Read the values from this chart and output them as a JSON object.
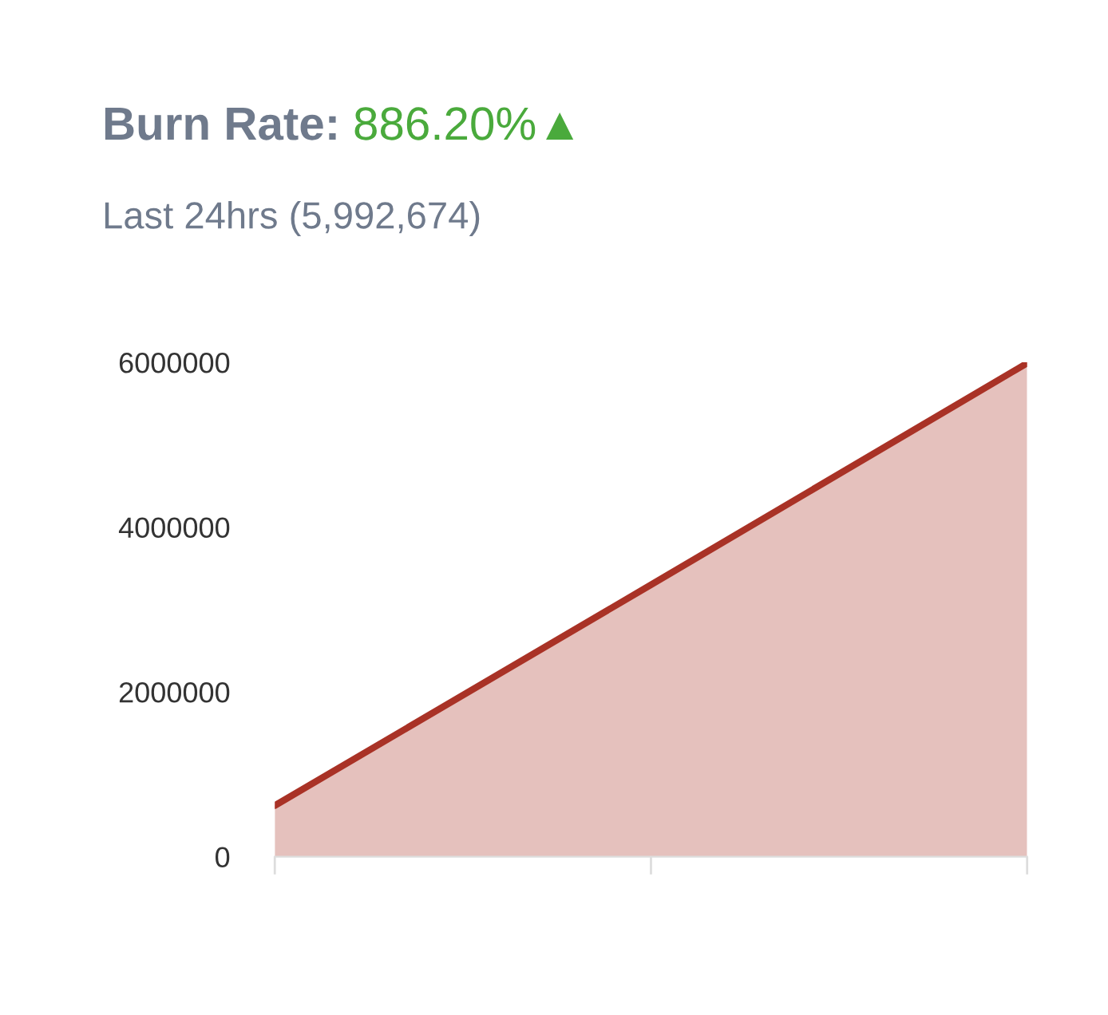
{
  "chart_data": {
    "type": "area",
    "title": "Burn Rate:",
    "subtitle": "Last 24hrs (5,992,674)",
    "annotations": [
      "886.20%▲"
    ],
    "categories": [
      null,
      null,
      null
    ],
    "series": [
      {
        "color": "#a93226",
        "values": [
          620000,
          3300000,
          5990000
        ]
      }
    ],
    "ylim": [
      0,
      6000000
    ],
    "yticks": [
      0,
      2000000,
      4000000,
      6000000
    ],
    "grid": false,
    "legend": false
  }
}
